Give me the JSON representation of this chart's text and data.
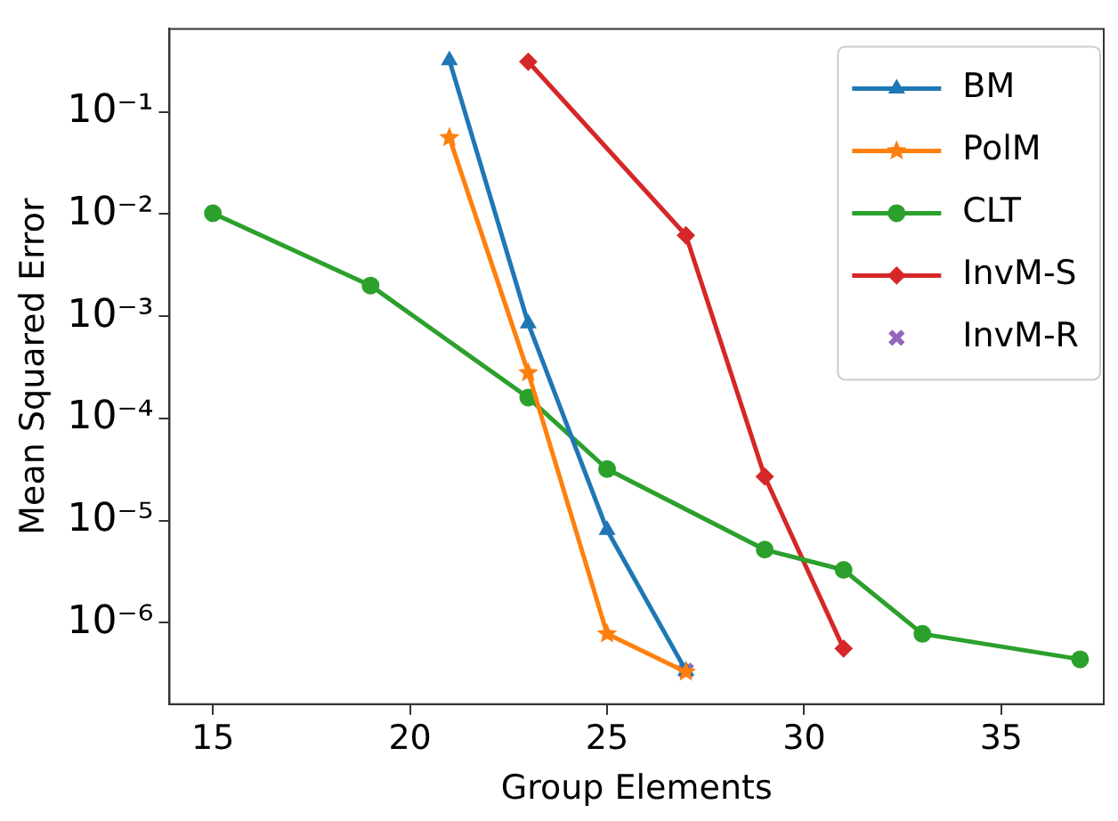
{
  "chart_data": {
    "type": "line",
    "xlabel": "Group Elements",
    "ylabel": "Mean Squared Error",
    "log": "y",
    "grid": false,
    "legend": "top right",
    "xlim": [
      13.9,
      37.6
    ],
    "xticks": [
      15,
      20,
      25,
      30,
      35
    ],
    "ylim": [
      1.6e-07,
      0.65
    ],
    "yticks": [
      {
        "value": 0.1,
        "label": "10⁻¹"
      },
      {
        "value": 0.01,
        "label": "10⁻²"
      },
      {
        "value": 0.001,
        "label": "10⁻³"
      },
      {
        "value": 0.0001,
        "label": "10⁻⁴"
      },
      {
        "value": 1e-05,
        "label": "10⁻⁵"
      },
      {
        "value": 1e-06,
        "label": "10⁻⁶"
      }
    ],
    "series": [
      {
        "name": "BM",
        "color": "#1f77b4",
        "marker": "triangle",
        "x": [
          21,
          23,
          25,
          27
        ],
        "values": [
          0.32,
          0.00085,
          8.1e-06,
          3.4e-07
        ]
      },
      {
        "name": "PolM",
        "color": "#ff7f0e",
        "marker": "star",
        "x": [
          21,
          23,
          25,
          27
        ],
        "values": [
          0.056,
          0.00028,
          7.8e-07,
          3.3e-07
        ]
      },
      {
        "name": "CLT",
        "color": "#2ca02c",
        "marker": "circle",
        "x": [
          15,
          19,
          23,
          25,
          29,
          31,
          33,
          37
        ],
        "values": [
          0.0102,
          0.002,
          0.00016,
          3.2e-05,
          5.2e-06,
          3.3e-06,
          7.8e-07,
          4.4e-07
        ]
      },
      {
        "name": "InvM-S",
        "color": "#d62728",
        "marker": "diamond",
        "x": [
          23,
          27,
          29,
          31
        ],
        "values": [
          0.31,
          0.0062,
          2.7e-05,
          5.6e-07
        ]
      },
      {
        "name": "InvM-R",
        "color": "#9467bd",
        "marker": "cross",
        "type": "scatter",
        "x": [
          27
        ],
        "values": [
          3.4e-07
        ]
      }
    ]
  }
}
